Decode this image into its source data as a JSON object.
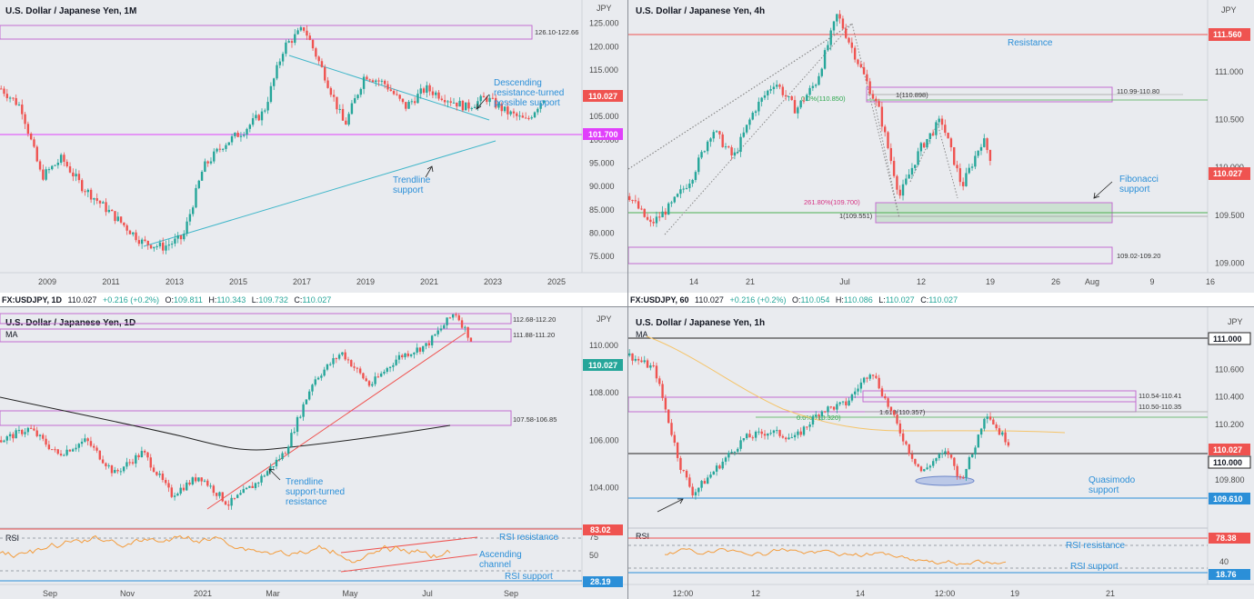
{
  "chart_data": [
    {
      "type": "candlestick",
      "title": "U.S. Dollar / Japanese Yen, 1M",
      "currency": "JPY",
      "timeframe": "1M",
      "x_ticks": [
        "2009",
        "2011",
        "2013",
        "2015",
        "2017",
        "2019",
        "2021",
        "2023",
        "2025"
      ],
      "y_ticks": [
        75,
        80,
        85,
        90,
        95,
        100,
        105,
        110,
        115,
        120,
        125
      ],
      "ylim": [
        71.5,
        130
      ],
      "price_tag": "110.027",
      "level_tag": "101.700",
      "zones": [
        {
          "label": "126.10-122.66",
          "top": 126.1,
          "bottom": 122.66
        }
      ],
      "horizontal_levels": [
        {
          "value": 101.7,
          "color": "#e040fb"
        }
      ],
      "annotations": [
        "Descending resistance-turned possible support",
        "Trendline support"
      ],
      "series_points": [
        [
          2008.0,
          111
        ],
        [
          2008.5,
          107
        ],
        [
          2009.0,
          92
        ],
        [
          2009.5,
          96
        ],
        [
          2010.0,
          90
        ],
        [
          2010.5,
          86
        ],
        [
          2011.0,
          82
        ],
        [
          2011.5,
          78
        ],
        [
          2012.0,
          77
        ],
        [
          2012.5,
          79
        ],
        [
          2013.0,
          94
        ],
        [
          2013.5,
          99
        ],
        [
          2014.0,
          102
        ],
        [
          2014.5,
          106
        ],
        [
          2015.0,
          120
        ],
        [
          2015.5,
          124
        ],
        [
          2016.0,
          114
        ],
        [
          2016.5,
          103
        ],
        [
          2017.0,
          114
        ],
        [
          2017.5,
          112
        ],
        [
          2018.0,
          107
        ],
        [
          2018.5,
          111
        ],
        [
          2019.0,
          109
        ],
        [
          2019.5,
          107
        ],
        [
          2020.0,
          109
        ],
        [
          2020.5,
          106
        ],
        [
          2021.0,
          104
        ],
        [
          2021.5,
          110
        ]
      ]
    },
    {
      "type": "candlestick",
      "title": "U.S. Dollar / Japanese Yen, 4h",
      "currency": "JPY",
      "timeframe": "4h",
      "x_ticks": [
        "14",
        "21",
        "Jul",
        "12",
        "19",
        "26",
        "Aug",
        "9",
        "16"
      ],
      "y_ticks": [
        109.0,
        109.5,
        110.0,
        110.5,
        111.0
      ],
      "ylim": [
        108.9,
        111.75
      ],
      "price_tag": "110.027",
      "level_tag": "111.560",
      "zones": [
        {
          "label": "110.99-110.80",
          "top": 110.99,
          "bottom": 110.8
        },
        {
          "label": "109.02-109.20",
          "top": 109.2,
          "bottom": 109.02
        }
      ],
      "fib_labels": [
        "1(110.898)",
        "0.0%(110.850)",
        "261.80%(109.700)",
        "1(109.551)"
      ],
      "annotations": [
        "Resistance",
        "Fibonacci support"
      ],
      "series_points": [
        [
          0,
          109.7
        ],
        [
          2,
          109.4
        ],
        [
          4,
          109.6
        ],
        [
          6,
          109.9
        ],
        [
          8,
          110.4
        ],
        [
          10,
          110.1
        ],
        [
          12,
          110.6
        ],
        [
          14,
          110.9
        ],
        [
          16,
          110.6
        ],
        [
          18,
          110.9
        ],
        [
          20,
          111.6
        ],
        [
          22,
          111.1
        ],
        [
          24,
          110.6
        ],
        [
          26,
          109.7
        ],
        [
          28,
          110.2
        ],
        [
          30,
          110.5
        ],
        [
          32,
          109.8
        ],
        [
          34,
          110.3
        ],
        [
          35,
          110.03
        ]
      ]
    },
    {
      "type": "candlestick",
      "title": "U.S. Dollar / Japanese Yen, 1D",
      "ohlc": {
        "symbol": "FX:USDJPY, 1D",
        "last": "110.027",
        "change": "+0.216 (+0.2%)",
        "open": "109.811",
        "high": "110.343",
        "low": "109.732",
        "close": "110.027"
      },
      "currency": "JPY",
      "timeframe": "1D",
      "x_ticks": [
        "Sep",
        "Nov",
        "2021",
        "Mar",
        "May",
        "Jul",
        "Sep"
      ],
      "y_ticks": [
        104,
        106,
        108,
        110
      ],
      "ylim": [
        102.3,
        111.6
      ],
      "price_tag": "110.027",
      "zones": [
        {
          "label": "112.68-112.20",
          "top": 112.68,
          "bottom": 112.2
        },
        {
          "label": "111.88-111.20",
          "top": 111.88,
          "bottom": 111.2
        },
        {
          "label": "107.58-106.85",
          "top": 107.58,
          "bottom": 106.85
        }
      ],
      "ma_label": "MA",
      "annotations": [
        "Trendline support-turned resistance",
        "RSI resistance",
        "Ascending channel",
        "RSI support"
      ],
      "rsi": {
        "label": "RSI",
        "y_ticks": [
          25,
          50,
          75
        ],
        "resistance": "83.02",
        "support": "28.19"
      },
      "series_points": [
        [
          0,
          106.0
        ],
        [
          6,
          106.5
        ],
        [
          12,
          105.4
        ],
        [
          18,
          106.0
        ],
        [
          24,
          104.6
        ],
        [
          30,
          105.5
        ],
        [
          36,
          103.7
        ],
        [
          42,
          104.5
        ],
        [
          48,
          103.3
        ],
        [
          54,
          104.2
        ],
        [
          60,
          105.5
        ],
        [
          66,
          108.5
        ],
        [
          72,
          109.7
        ],
        [
          78,
          108.3
        ],
        [
          84,
          109.5
        ],
        [
          90,
          110.0
        ],
        [
          96,
          111.4
        ],
        [
          100,
          110.02
        ]
      ]
    },
    {
      "type": "candlestick",
      "title": "U.S. Dollar / Japanese Yen, 1h",
      "ohlc": {
        "symbol": "FX:USDJPY, 60",
        "last": "110.027",
        "change": "+0.216 (+0.2%)",
        "open": "110.054",
        "high": "110.086",
        "low": "110.027",
        "close": "110.027"
      },
      "currency": "JPY",
      "timeframe": "1h",
      "x_ticks": [
        "12:00",
        "12",
        "14",
        "12:00",
        "19",
        "21"
      ],
      "y_ticks": [
        109.8,
        110.2,
        110.4,
        110.6,
        110.8
      ],
      "ylim": [
        109.45,
        111.05
      ],
      "price_tags": [
        "111.000",
        "110.027",
        "110.000",
        "109.610"
      ],
      "zones": [
        {
          "label": "110.54-110.41",
          "top": 110.54,
          "bottom": 110.41
        },
        {
          "label": "110.50-110.35",
          "top": 110.5,
          "bottom": 110.35
        }
      ],
      "fib_labels": [
        "1.618(110.357)",
        "0.0%(110.320)"
      ],
      "ma_label": "MA",
      "annotations": [
        "Quasimodo support",
        "RSI resistance",
        "RSI support"
      ],
      "rsi": {
        "label": "RSI",
        "y_ticks": [
          40
        ],
        "resistance": "78.38",
        "support": "18.76"
      },
      "series_points": [
        [
          0,
          110.7
        ],
        [
          4,
          110.6
        ],
        [
          8,
          109.9
        ],
        [
          10,
          109.7
        ],
        [
          14,
          109.9
        ],
        [
          18,
          110.1
        ],
        [
          22,
          110.15
        ],
        [
          26,
          110.1
        ],
        [
          30,
          110.3
        ],
        [
          34,
          110.35
        ],
        [
          38,
          110.6
        ],
        [
          40,
          110.4
        ],
        [
          42,
          110.2
        ],
        [
          44,
          110.0
        ],
        [
          46,
          109.85
        ],
        [
          48,
          109.95
        ],
        [
          50,
          110.0
        ],
        [
          52,
          109.8
        ],
        [
          54,
          110.0
        ],
        [
          56,
          110.3
        ],
        [
          58,
          110.15
        ],
        [
          60,
          110.05
        ]
      ]
    }
  ]
}
